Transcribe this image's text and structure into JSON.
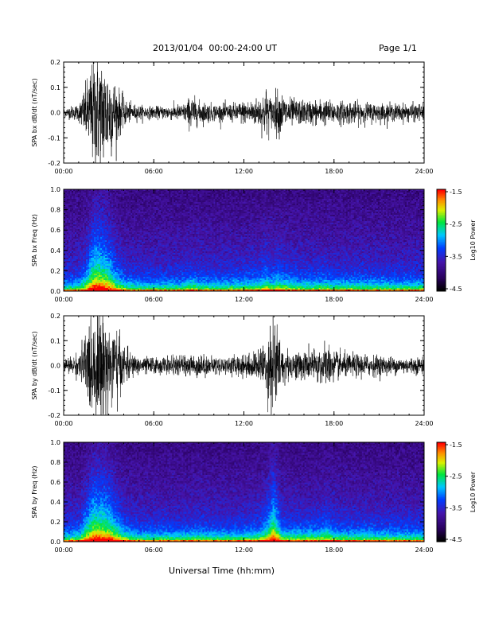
{
  "header": {
    "title": "2013/01/04  00:00-24:00 UT",
    "page": "Page 1/1"
  },
  "xlabel": "Universal Time (hh:mm)",
  "chart_data": [
    {
      "type": "line",
      "ylabel": "SPA bx dB/dt (nT/sec)",
      "xlim": [
        0,
        24
      ],
      "ylim": [
        -0.2,
        0.2
      ],
      "xticklabels": [
        "00:00",
        "06:00",
        "12:00",
        "18:00",
        "24:00"
      ],
      "yticklabels": [
        "0.2",
        "0.1",
        "0.0",
        "-0.1",
        "-0.2"
      ],
      "envelope_hours": [
        0,
        1,
        1.5,
        2,
        2.5,
        3,
        3.5,
        4,
        4.5,
        5,
        6,
        7,
        8,
        8.5,
        9,
        10,
        11,
        12,
        13,
        13.5,
        13.8,
        14.2,
        15,
        16,
        17,
        18,
        19,
        20,
        22,
        24
      ],
      "envelope_amplitude": [
        0.015,
        0.03,
        0.1,
        0.2,
        0.2,
        0.17,
        0.1,
        0.05,
        0.03,
        0.025,
        0.02,
        0.025,
        0.03,
        0.06,
        0.04,
        0.03,
        0.03,
        0.04,
        0.05,
        0.09,
        0.05,
        0.08,
        0.05,
        0.04,
        0.045,
        0.04,
        0.04,
        0.035,
        0.03,
        0.03
      ]
    },
    {
      "type": "heatmap",
      "ylabel": "SPA bx Freq (Hz)",
      "xlim": [
        0,
        24
      ],
      "ylim": [
        0,
        1.0
      ],
      "xticklabels": [
        "00:00",
        "06:00",
        "12:00",
        "18:00",
        "24:00"
      ],
      "yticklabels": [
        "1.0",
        "0.8",
        "0.6",
        "0.4",
        "0.2",
        "0.0"
      ],
      "colorbar_label": "Log10 Power",
      "colorbar_range": [
        -4.5,
        -1.5
      ],
      "colorbar_ticklabels": [
        "-1.5",
        "-2.5",
        "-3.5",
        "-4.5"
      ]
    },
    {
      "type": "line",
      "ylabel": "SPA by dB/dt (nT/sec)",
      "xlim": [
        0,
        24
      ],
      "ylim": [
        -0.2,
        0.2
      ],
      "xticklabels": [
        "00:00",
        "06:00",
        "12:00",
        "18:00",
        "24:00"
      ],
      "yticklabels": [
        "0.2",
        "0.1",
        "0.0",
        "-0.1",
        "-0.2"
      ],
      "envelope_hours": [
        0,
        1,
        1.5,
        2,
        2.5,
        3,
        3.5,
        4,
        4.5,
        5,
        6,
        7,
        8,
        9,
        10,
        11,
        12,
        13,
        13.5,
        14,
        14.5,
        15,
        16,
        17,
        17.5,
        18,
        19,
        20,
        22,
        24
      ],
      "envelope_amplitude": [
        0.02,
        0.04,
        0.13,
        0.2,
        0.2,
        0.18,
        0.13,
        0.07,
        0.04,
        0.03,
        0.03,
        0.03,
        0.035,
        0.04,
        0.03,
        0.03,
        0.04,
        0.05,
        0.1,
        0.2,
        0.07,
        0.05,
        0.05,
        0.06,
        0.08,
        0.05,
        0.04,
        0.04,
        0.03,
        0.03
      ]
    },
    {
      "type": "heatmap",
      "ylabel": "SPA by Freq (Hz)",
      "xlim": [
        0,
        24
      ],
      "ylim": [
        0,
        1.0
      ],
      "xticklabels": [
        "00:00",
        "06:00",
        "12:00",
        "18:00",
        "24:00"
      ],
      "yticklabels": [
        "1.0",
        "0.8",
        "0.6",
        "0.4",
        "0.2",
        "0.0"
      ],
      "colorbar_label": "Log10 Power",
      "colorbar_range": [
        -4.5,
        -1.5
      ],
      "colorbar_ticklabels": [
        "-1.5",
        "-2.5",
        "-3.5",
        "-4.5"
      ]
    }
  ]
}
